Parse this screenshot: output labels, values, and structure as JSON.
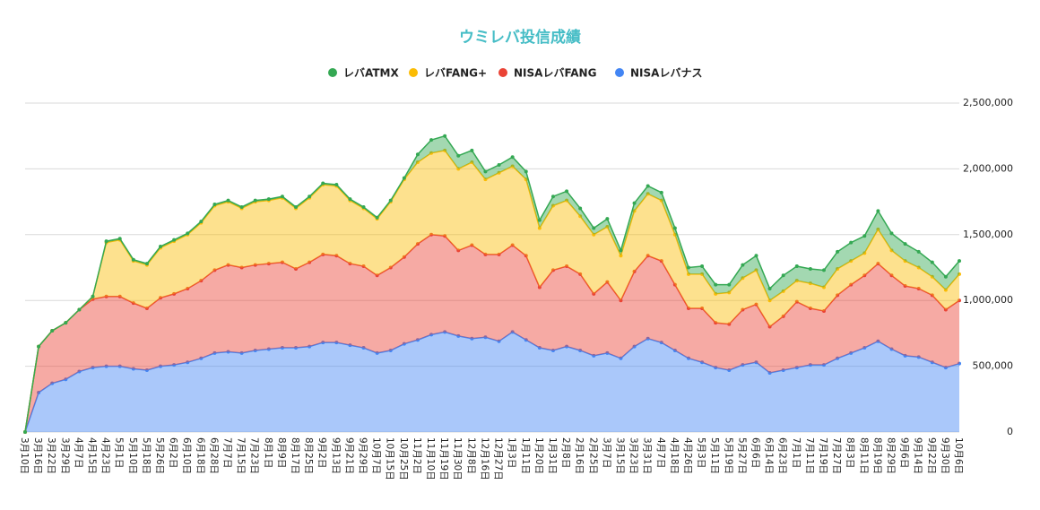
{
  "chart_data": {
    "type": "stacked-area",
    "title": "ウミレバ投信成績",
    "categories": [
      "3月10日",
      "3月16日",
      "3月22日",
      "3月29日",
      "4月7日",
      "4月15日",
      "4月23日",
      "5月1日",
      "5月10日",
      "5月18日",
      "5月26日",
      "6月2日",
      "6月10日",
      "6月18日",
      "6月28日",
      "7月7日",
      "7月15日",
      "7月23日",
      "8月1日",
      "8月9日",
      "8月17日",
      "8月25日",
      "9月2日",
      "9月13日",
      "9月21日",
      "9月29日",
      "10月7日",
      "10月15日",
      "10月25日",
      "11月2日",
      "11月10日",
      "11月19日",
      "11月30日",
      "12月8日",
      "12月16日",
      "12月27日",
      "1月3日",
      "1月11日",
      "1月20日",
      "1月31日",
      "2月8日",
      "2月16日",
      "2月25日",
      "3月7日",
      "3月15日",
      "3月23日",
      "3月31日",
      "4月7日",
      "4月18日",
      "4月26日",
      "5月3日",
      "5月11日",
      "5月19日",
      "5月27日",
      "6月6日",
      "6月14日",
      "6月23日",
      "7月1日",
      "7月11日",
      "7月19日",
      "7月27日",
      "8月3日",
      "8月11日",
      "8月19日",
      "8月29日",
      "9月6日",
      "9月14日",
      "9月22日",
      "9月30日",
      "10月6日"
    ],
    "series": [
      {
        "name": "NISAレバナス",
        "color": "#4285f4",
        "values": [
          0,
          300000,
          370000,
          400000,
          460000,
          490000,
          500000,
          500000,
          480000,
          470000,
          500000,
          510000,
          530000,
          560000,
          600000,
          610000,
          600000,
          620000,
          630000,
          640000,
          640000,
          650000,
          680000,
          680000,
          660000,
          640000,
          600000,
          620000,
          670000,
          700000,
          740000,
          760000,
          730000,
          710000,
          720000,
          690000,
          760000,
          700000,
          640000,
          620000,
          650000,
          620000,
          580000,
          600000,
          560000,
          650000,
          710000,
          680000,
          620000,
          560000,
          530000,
          490000,
          470000,
          510000,
          530000,
          450000,
          470000,
          490000,
          510000,
          510000,
          560000,
          600000,
          640000,
          690000,
          630000,
          580000,
          570000,
          530000,
          490000,
          520000
        ]
      },
      {
        "name": "NISAレバFANG",
        "color": "#ea4335",
        "values": [
          0,
          350000,
          400000,
          430000,
          470000,
          520000,
          530000,
          530000,
          500000,
          470000,
          520000,
          540000,
          560000,
          590000,
          630000,
          660000,
          650000,
          650000,
          650000,
          650000,
          600000,
          640000,
          670000,
          660000,
          620000,
          620000,
          590000,
          630000,
          660000,
          730000,
          760000,
          730000,
          650000,
          710000,
          630000,
          660000,
          660000,
          640000,
          460000,
          610000,
          610000,
          580000,
          470000,
          540000,
          440000,
          570000,
          630000,
          620000,
          500000,
          380000,
          410000,
          340000,
          350000,
          420000,
          440000,
          350000,
          410000,
          500000,
          430000,
          410000,
          480000,
          520000,
          550000,
          590000,
          560000,
          530000,
          520000,
          510000,
          440000,
          480000
        ]
      },
      {
        "name": "レバFANG+",
        "color": "#fbbc04",
        "values": [
          0,
          0,
          0,
          0,
          0,
          20000,
          410000,
          430000,
          320000,
          330000,
          380000,
          400000,
          410000,
          440000,
          490000,
          480000,
          450000,
          480000,
          480000,
          490000,
          460000,
          490000,
          530000,
          530000,
          480000,
          440000,
          430000,
          500000,
          590000,
          620000,
          620000,
          650000,
          620000,
          630000,
          570000,
          620000,
          600000,
          580000,
          450000,
          490000,
          500000,
          440000,
          450000,
          420000,
          340000,
          460000,
          470000,
          460000,
          380000,
          260000,
          260000,
          220000,
          240000,
          240000,
          260000,
          200000,
          190000,
          160000,
          190000,
          180000,
          200000,
          180000,
          170000,
          260000,
          190000,
          190000,
          160000,
          140000,
          150000,
          200000
        ]
      },
      {
        "name": "レバATMX",
        "color": "#34a853",
        "values": [
          0,
          0,
          0,
          0,
          0,
          0,
          10000,
          10000,
          10000,
          10000,
          10000,
          10000,
          10000,
          10000,
          10000,
          10000,
          10000,
          10000,
          10000,
          10000,
          10000,
          10000,
          10000,
          10000,
          10000,
          10000,
          10000,
          10000,
          10000,
          60000,
          100000,
          110000,
          100000,
          90000,
          60000,
          60000,
          70000,
          60000,
          60000,
          70000,
          70000,
          60000,
          50000,
          60000,
          40000,
          60000,
          60000,
          60000,
          50000,
          50000,
          60000,
          70000,
          60000,
          100000,
          110000,
          90000,
          120000,
          110000,
          110000,
          130000,
          130000,
          140000,
          130000,
          140000,
          130000,
          130000,
          120000,
          110000,
          100000,
          100000
        ]
      }
    ],
    "ylim": [
      0,
      2500000
    ],
    "yticks": [
      0,
      {
        "value": 500000,
        "label": "500,000"
      },
      {
        "value": 1000000,
        "label": "1,000,000"
      },
      {
        "value": 1500000,
        "label": "1,500,000"
      },
      {
        "value": 2000000,
        "label": "2,000,000"
      },
      {
        "value": 2500000,
        "label": "2,500,000"
      }
    ],
    "grid": true,
    "legend": "top"
  }
}
